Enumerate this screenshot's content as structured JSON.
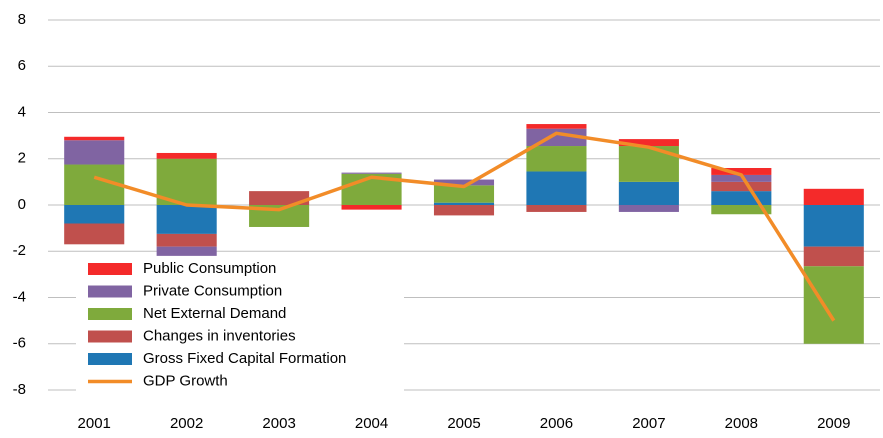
{
  "chart_data": {
    "type": "bar",
    "categories": [
      "2001",
      "2002",
      "2003",
      "2004",
      "2005",
      "2006",
      "2007",
      "2008",
      "2009"
    ],
    "series": [
      {
        "name": "Gross Fixed Capital Formation",
        "color": "#1f77b4",
        "values": [
          -0.8,
          -1.25,
          0,
          0,
          0.1,
          1.45,
          1.0,
          0.6,
          -1.8
        ]
      },
      {
        "name": "Changes in inventories",
        "color": "#c0504d",
        "values": [
          -0.9,
          -0.55,
          0.6,
          0,
          -0.45,
          -0.3,
          0,
          0.4,
          -0.85
        ]
      },
      {
        "name": "Net External Demand",
        "color": "#7faa3c",
        "values": [
          1.75,
          2.0,
          -0.95,
          1.35,
          0.75,
          1.1,
          1.55,
          -0.4,
          -3.35
        ]
      },
      {
        "name": "Private Consumption",
        "color": "#8064a2",
        "values": [
          1.05,
          -0.4,
          0,
          0.05,
          0.25,
          0.75,
          -0.3,
          0.3,
          0
        ]
      },
      {
        "name": "Public Consumption",
        "color": "#f42a2a",
        "values": [
          0.15,
          0.25,
          0,
          -0.2,
          0,
          0.2,
          0.3,
          0.3,
          0.7
        ]
      },
      {
        "name": "GDP Growth",
        "type": "line",
        "color": "#f28c28",
        "values": [
          1.2,
          0.0,
          -0.2,
          1.2,
          0.8,
          3.1,
          2.5,
          1.3,
          -5.0
        ]
      }
    ],
    "ylim": [
      -8,
      8
    ],
    "yticks": [
      -8,
      -6,
      -4,
      -2,
      0,
      2,
      4,
      6,
      8
    ],
    "grid": true,
    "legend": "lower left"
  }
}
